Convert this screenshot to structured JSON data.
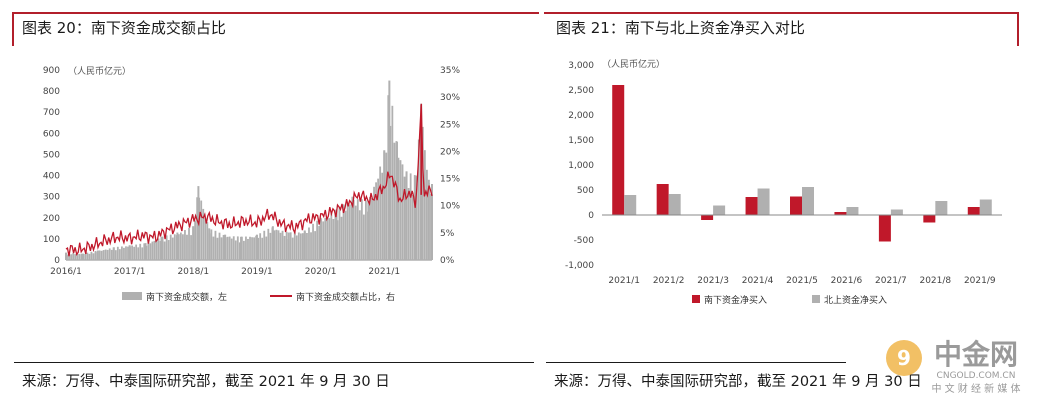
{
  "left_panel": {
    "title": "图表 20：南下资金成交额占比",
    "source": "来源：万得、中泰国际研究部，截至 2021 年 9 月 30 日"
  },
  "right_panel": {
    "title": "图表 21：南下与北上资金净买入对比",
    "source": "来源：万得、中泰国际研究部，截至 2021 年 9 月 30 日"
  },
  "watermark": {
    "name": "中金网",
    "url": "CNGOLD.COM.CN",
    "tagline": "中 文 财 经 新 媒 体"
  },
  "colors": {
    "red": "#c0182a",
    "gray": "#b0b0b0",
    "rule": "#b21f2b"
  },
  "chart_data": [
    {
      "type": "bar+line",
      "unit_label": "（人民币亿元）",
      "x_ticks": [
        "2016/1",
        "2017/1",
        "2018/1",
        "2019/1",
        "2020/1",
        "2021/1"
      ],
      "x_range": [
        2016.0,
        2021.75
      ],
      "y_left_ticks": [
        "0",
        "100",
        "200",
        "300",
        "400",
        "500",
        "600",
        "700",
        "800",
        "900"
      ],
      "y_left_range": [
        0,
        900
      ],
      "y_right_ticks": [
        "0%",
        "5%",
        "10%",
        "15%",
        "20%",
        "25%",
        "30%",
        "35%"
      ],
      "y_right_range": [
        0,
        35
      ],
      "series": [
        {
          "name": "南下资金成交额，左",
          "axis": "left",
          "style": "bar",
          "points": [
            [
              2016.0,
              35
            ],
            [
              2016.25,
              30
            ],
            [
              2016.5,
              45
            ],
            [
              2016.75,
              60
            ],
            [
              2017.0,
              70
            ],
            [
              2017.25,
              80
            ],
            [
              2017.5,
              110
            ],
            [
              2017.75,
              130
            ],
            [
              2018.0,
              160
            ],
            [
              2018.08,
              350
            ],
            [
              2018.25,
              150
            ],
            [
              2018.5,
              120
            ],
            [
              2018.75,
              110
            ],
            [
              2019.0,
              120
            ],
            [
              2019.25,
              160
            ],
            [
              2019.5,
              130
            ],
            [
              2019.75,
              140
            ],
            [
              2020.0,
              200
            ],
            [
              2020.25,
              240
            ],
            [
              2020.5,
              300
            ],
            [
              2020.75,
              280
            ],
            [
              2021.0,
              520
            ],
            [
              2021.08,
              850
            ],
            [
              2021.2,
              560
            ],
            [
              2021.35,
              420
            ],
            [
              2021.5,
              400
            ],
            [
              2021.58,
              740
            ],
            [
              2021.7,
              380
            ],
            [
              2021.75,
              360
            ]
          ]
        },
        {
          "name": "南下资金成交额占比，右",
          "axis": "right",
          "style": "line",
          "points": [
            [
              2016.0,
              2.0
            ],
            [
              2016.2,
              1.8
            ],
            [
              2016.4,
              2.5
            ],
            [
              2016.6,
              3.5
            ],
            [
              2016.8,
              4.2
            ],
            [
              2017.0,
              4.0
            ],
            [
              2017.2,
              4.5
            ],
            [
              2017.4,
              4.2
            ],
            [
              2017.6,
              5.5
            ],
            [
              2017.8,
              6.5
            ],
            [
              2018.0,
              7.5
            ],
            [
              2018.2,
              8.0
            ],
            [
              2018.4,
              7.0
            ],
            [
              2018.6,
              6.5
            ],
            [
              2018.8,
              7.2
            ],
            [
              2019.0,
              6.8
            ],
            [
              2019.2,
              8.5
            ],
            [
              2019.4,
              6.5
            ],
            [
              2019.6,
              6.0
            ],
            [
              2019.8,
              7.5
            ],
            [
              2020.0,
              8.0
            ],
            [
              2020.2,
              9.0
            ],
            [
              2020.4,
              10.0
            ],
            [
              2020.6,
              12.0
            ],
            [
              2020.8,
              11.0
            ],
            [
              2021.0,
              13.5
            ],
            [
              2021.1,
              16.0
            ],
            [
              2021.25,
              11.0
            ],
            [
              2021.4,
              12.5
            ],
            [
              2021.5,
              10.5
            ],
            [
              2021.58,
              28.5
            ],
            [
              2021.62,
              12.0
            ],
            [
              2021.75,
              13.0
            ]
          ]
        }
      ]
    },
    {
      "type": "bar",
      "unit_label": "（人民币亿元）",
      "categories": [
        "2021/1",
        "2021/2",
        "2021/3",
        "2021/4",
        "2021/5",
        "2021/6",
        "2021/7",
        "2021/8",
        "2021/9"
      ],
      "y_ticks": [
        "3,000",
        "2,500",
        "2,000",
        "1,500",
        "1,000",
        "500",
        "0",
        "-500",
        "-1,000"
      ],
      "ylim": [
        -1000,
        3000
      ],
      "series": [
        {
          "name": "南下资金净买入",
          "values": [
            2600,
            620,
            -100,
            360,
            370,
            60,
            -530,
            -150,
            160
          ]
        },
        {
          "name": "北上资金净买入",
          "values": [
            400,
            420,
            190,
            530,
            560,
            160,
            110,
            280,
            310
          ]
        }
      ]
    }
  ]
}
